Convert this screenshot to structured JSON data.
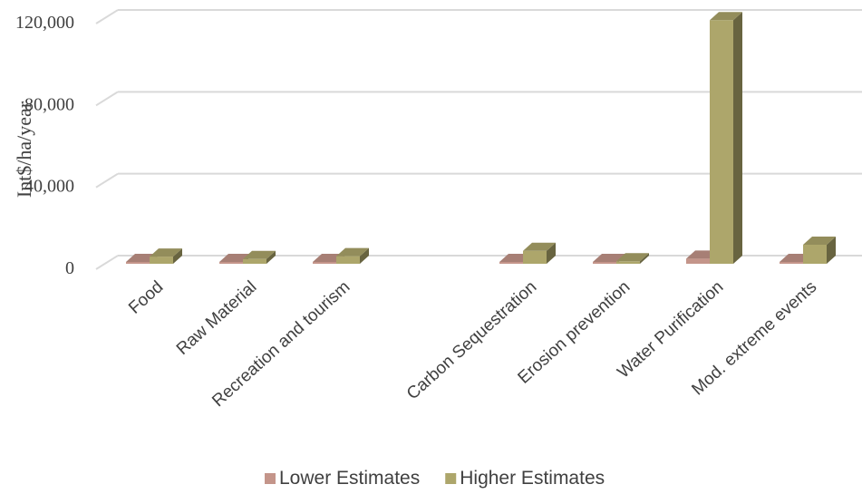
{
  "chart_data": {
    "type": "bar",
    "style": "3d-clustered-column",
    "ylabel": "Int$/ha/year",
    "xlabel": "",
    "ylim": [
      0,
      120000
    ],
    "yticks": [
      0,
      40000,
      80000,
      120000
    ],
    "ytick_labels": [
      "0",
      "40,000",
      "80,000",
      "120,000"
    ],
    "grid": true,
    "legend_position": "bottom",
    "categories": [
      "Food",
      "Raw Material",
      "Recreation and tourism",
      "",
      "Carbon Sequestration",
      "Erosion prevention",
      "Water Purification",
      "Mod. extreme events"
    ],
    "series": [
      {
        "name": "Lower Estimates",
        "color": "#C4958A",
        "values": [
          800,
          400,
          600,
          null,
          600,
          300,
          2500,
          300
        ]
      },
      {
        "name": "Higher Estimates",
        "color": "#ADA66B",
        "values": [
          3500,
          2300,
          3700,
          null,
          6300,
          1200,
          119000,
          9300
        ]
      }
    ]
  }
}
